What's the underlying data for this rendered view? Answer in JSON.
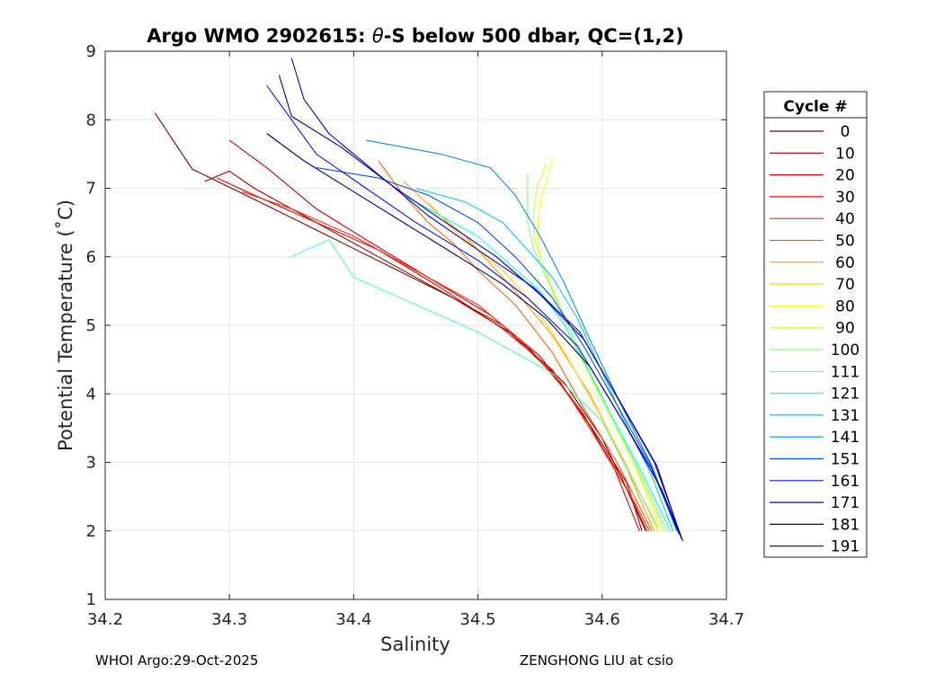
{
  "chart_data": {
    "type": "line",
    "title_parts": [
      "Argo WMO 2902615: ",
      "θ",
      "-S below 500 dbar,  QC=(1,2)"
    ],
    "xlabel": "Salinity",
    "ylabel": "Potential Temperature (˚C)",
    "xlim": [
      34.2,
      34.7
    ],
    "ylim": [
      1,
      9
    ],
    "xticks": [
      "34.2",
      "34.3",
      "34.4",
      "34.5",
      "34.6",
      "34.7"
    ],
    "yticks": [
      "1",
      "2",
      "3",
      "4",
      "5",
      "6",
      "7",
      "8",
      "9"
    ],
    "grid": true,
    "legend": {
      "title": "Cycle #",
      "placement": "right, outside",
      "entries": [
        "0",
        "10",
        "20",
        "30",
        "40",
        "50",
        "60",
        "70",
        "80",
        "90",
        "100",
        "111",
        "121",
        "131",
        "141",
        "151",
        "161",
        "171",
        "181",
        "191"
      ],
      "colors": [
        "#7f0000",
        "#a50000",
        "#cc0000",
        "#f20000",
        "#ff2a00",
        "#ff6200",
        "#ff9e00",
        "#ffd400",
        "#ffff00",
        "#c8ff37",
        "#88ff77",
        "#44ffbb",
        "#00ffff",
        "#00c8ff",
        "#008cff",
        "#0050ff",
        "#0014ff",
        "#0000d6",
        "#0000a8",
        "#000080"
      ]
    },
    "series": [
      {
        "name": "0",
        "values": [
          [
            34.24,
            8.1
          ],
          [
            34.27,
            7.28
          ],
          [
            34.33,
            6.75
          ],
          [
            34.38,
            6.3
          ],
          [
            34.43,
            5.85
          ],
          [
            34.48,
            5.4
          ],
          [
            34.53,
            4.85
          ],
          [
            34.57,
            4.15
          ],
          [
            34.6,
            3.35
          ],
          [
            34.62,
            2.6
          ],
          [
            34.635,
            2.0
          ]
        ]
      },
      {
        "name": "10",
        "values": [
          [
            34.28,
            7.1
          ],
          [
            34.3,
            7.25
          ],
          [
            34.32,
            7.0
          ],
          [
            34.36,
            6.6
          ],
          [
            34.42,
            6.0
          ],
          [
            34.47,
            5.5
          ],
          [
            34.52,
            5.0
          ],
          [
            34.56,
            4.3
          ],
          [
            34.59,
            3.55
          ],
          [
            34.62,
            2.7
          ],
          [
            34.632,
            2.0
          ]
        ]
      },
      {
        "name": "20",
        "values": [
          [
            34.3,
            7.7
          ],
          [
            34.33,
            7.3
          ],
          [
            34.37,
            6.7
          ],
          [
            34.41,
            6.25
          ],
          [
            34.46,
            5.7
          ],
          [
            34.51,
            5.15
          ],
          [
            34.55,
            4.55
          ],
          [
            34.585,
            3.7
          ],
          [
            34.61,
            2.9
          ],
          [
            34.63,
            2.0
          ]
        ]
      },
      {
        "name": "30",
        "values": [
          [
            34.29,
            7.15
          ],
          [
            34.32,
            6.9
          ],
          [
            34.37,
            6.5
          ],
          [
            34.42,
            6.1
          ],
          [
            34.47,
            5.55
          ],
          [
            34.52,
            4.95
          ],
          [
            34.56,
            4.35
          ],
          [
            34.59,
            3.5
          ],
          [
            34.615,
            2.8
          ],
          [
            34.636,
            2.0
          ]
        ]
      },
      {
        "name": "40",
        "values": [
          [
            34.31,
            6.95
          ],
          [
            34.35,
            6.7
          ],
          [
            34.4,
            6.3
          ],
          [
            34.45,
            5.8
          ],
          [
            34.5,
            5.3
          ],
          [
            34.54,
            4.7
          ],
          [
            34.575,
            3.95
          ],
          [
            34.6,
            3.2
          ],
          [
            34.625,
            2.45
          ],
          [
            34.638,
            2.0
          ]
        ]
      },
      {
        "name": "50",
        "values": [
          [
            34.42,
            7.4
          ],
          [
            34.44,
            6.9
          ],
          [
            34.46,
            6.5
          ],
          [
            34.48,
            6.2
          ],
          [
            34.5,
            5.8
          ],
          [
            34.53,
            5.3
          ],
          [
            34.56,
            4.6
          ],
          [
            34.585,
            3.8
          ],
          [
            34.612,
            3.0
          ],
          [
            34.64,
            2.0
          ]
        ]
      },
      {
        "name": "60",
        "values": [
          [
            34.44,
            7.1
          ],
          [
            34.47,
            6.6
          ],
          [
            34.49,
            6.3
          ],
          [
            34.51,
            5.9
          ],
          [
            34.53,
            5.5
          ],
          [
            34.56,
            4.85
          ],
          [
            34.59,
            4.0
          ],
          [
            34.615,
            3.1
          ],
          [
            34.642,
            2.0
          ]
        ]
      },
      {
        "name": "70",
        "values": [
          [
            34.46,
            6.8
          ],
          [
            34.48,
            6.4
          ],
          [
            34.5,
            6.1
          ],
          [
            34.52,
            5.8
          ],
          [
            34.545,
            5.3
          ],
          [
            34.57,
            4.6
          ],
          [
            34.595,
            3.8
          ],
          [
            34.62,
            2.95
          ],
          [
            34.645,
            2.0
          ]
        ]
      },
      {
        "name": "80",
        "values": [
          [
            34.56,
            7.45
          ],
          [
            34.555,
            7.1
          ],
          [
            34.55,
            6.8
          ],
          [
            34.548,
            6.4
          ],
          [
            34.55,
            6.0
          ],
          [
            34.56,
            5.5
          ],
          [
            34.575,
            4.8
          ],
          [
            34.6,
            3.9
          ],
          [
            34.625,
            3.0
          ],
          [
            34.648,
            2.0
          ]
        ]
      },
      {
        "name": "90",
        "values": [
          [
            34.555,
            7.35
          ],
          [
            34.548,
            7.05
          ],
          [
            34.545,
            6.7
          ],
          [
            34.545,
            6.3
          ],
          [
            34.552,
            5.9
          ],
          [
            34.563,
            5.4
          ],
          [
            34.58,
            4.7
          ],
          [
            34.603,
            3.8
          ],
          [
            34.628,
            2.9
          ],
          [
            34.65,
            2.0
          ]
        ]
      },
      {
        "name": "100",
        "values": [
          [
            34.54,
            7.2
          ],
          [
            34.54,
            6.9
          ],
          [
            34.54,
            6.5
          ],
          [
            34.545,
            6.1
          ],
          [
            34.555,
            5.7
          ],
          [
            34.568,
            5.2
          ],
          [
            34.585,
            4.5
          ],
          [
            34.607,
            3.7
          ],
          [
            34.632,
            2.8
          ],
          [
            34.652,
            2.0
          ]
        ]
      },
      {
        "name": "111",
        "values": [
          [
            34.35,
            6.0
          ],
          [
            34.38,
            6.25
          ],
          [
            34.4,
            5.7
          ],
          [
            34.45,
            5.3
          ],
          [
            34.5,
            4.9
          ],
          [
            34.53,
            4.6
          ],
          [
            34.56,
            4.3
          ],
          [
            34.6,
            3.6
          ],
          [
            34.62,
            2.9
          ],
          [
            34.645,
            2.05
          ]
        ]
      },
      {
        "name": "121",
        "values": [
          [
            34.44,
            6.9
          ],
          [
            34.47,
            6.6
          ],
          [
            34.5,
            6.3
          ],
          [
            34.525,
            5.9
          ],
          [
            34.55,
            5.5
          ],
          [
            34.57,
            5.0
          ],
          [
            34.59,
            4.3
          ],
          [
            34.61,
            3.6
          ],
          [
            34.635,
            2.75
          ],
          [
            34.655,
            2.0
          ]
        ]
      },
      {
        "name": "131",
        "values": [
          [
            34.45,
            7.0
          ],
          [
            34.49,
            6.8
          ],
          [
            34.52,
            6.5
          ],
          [
            34.54,
            6.1
          ],
          [
            34.56,
            5.7
          ],
          [
            34.58,
            5.1
          ],
          [
            34.598,
            4.4
          ],
          [
            34.618,
            3.6
          ],
          [
            34.64,
            2.8
          ],
          [
            34.657,
            2.0
          ]
        ]
      },
      {
        "name": "141",
        "values": [
          [
            34.41,
            7.7
          ],
          [
            34.47,
            7.5
          ],
          [
            34.51,
            7.3
          ],
          [
            34.53,
            6.9
          ],
          [
            34.55,
            6.3
          ],
          [
            34.57,
            5.6
          ],
          [
            34.59,
            4.8
          ],
          [
            34.615,
            3.85
          ],
          [
            34.64,
            2.95
          ],
          [
            34.66,
            2.0
          ]
        ]
      },
      {
        "name": "151",
        "values": [
          [
            34.37,
            7.3
          ],
          [
            34.42,
            7.15
          ],
          [
            34.46,
            6.9
          ],
          [
            34.5,
            6.5
          ],
          [
            34.53,
            6.0
          ],
          [
            34.56,
            5.4
          ],
          [
            34.585,
            4.7
          ],
          [
            34.61,
            3.9
          ],
          [
            34.638,
            3.0
          ],
          [
            34.66,
            2.05
          ]
        ]
      },
      {
        "name": "161",
        "values": [
          [
            34.33,
            8.5
          ],
          [
            34.35,
            8.0
          ],
          [
            34.37,
            7.5
          ],
          [
            34.41,
            7.0
          ],
          [
            34.45,
            6.5
          ],
          [
            34.5,
            5.95
          ],
          [
            34.54,
            5.4
          ],
          [
            34.58,
            4.7
          ],
          [
            34.61,
            3.8
          ],
          [
            34.64,
            2.9
          ],
          [
            34.662,
            1.95
          ]
        ]
      },
      {
        "name": "171",
        "values": [
          [
            34.35,
            8.9
          ],
          [
            34.36,
            8.3
          ],
          [
            34.38,
            7.8
          ],
          [
            34.42,
            7.2
          ],
          [
            34.46,
            6.6
          ],
          [
            34.5,
            6.1
          ],
          [
            34.545,
            5.55
          ],
          [
            34.582,
            4.9
          ],
          [
            34.612,
            3.95
          ],
          [
            34.642,
            3.0
          ],
          [
            34.664,
            1.9
          ]
        ]
      },
      {
        "name": "181",
        "values": [
          [
            34.34,
            8.65
          ],
          [
            34.35,
            8.05
          ],
          [
            34.39,
            7.6
          ],
          [
            34.43,
            7.05
          ],
          [
            34.47,
            6.55
          ],
          [
            34.515,
            6.0
          ],
          [
            34.55,
            5.45
          ],
          [
            34.585,
            4.8
          ],
          [
            34.614,
            3.9
          ],
          [
            34.644,
            2.95
          ],
          [
            34.664,
            1.88
          ]
        ]
      },
      {
        "name": "191",
        "values": [
          [
            34.33,
            7.8
          ],
          [
            34.36,
            7.4
          ],
          [
            34.4,
            6.95
          ],
          [
            34.44,
            6.5
          ],
          [
            34.48,
            6.05
          ],
          [
            34.52,
            5.6
          ],
          [
            34.555,
            5.1
          ],
          [
            34.59,
            4.4
          ],
          [
            34.62,
            3.5
          ],
          [
            34.648,
            2.6
          ],
          [
            34.665,
            1.85
          ]
        ]
      }
    ]
  },
  "footer": {
    "left": "WHOI Argo:29-Oct-2025",
    "right": "ZENGHONG LIU at csio"
  }
}
